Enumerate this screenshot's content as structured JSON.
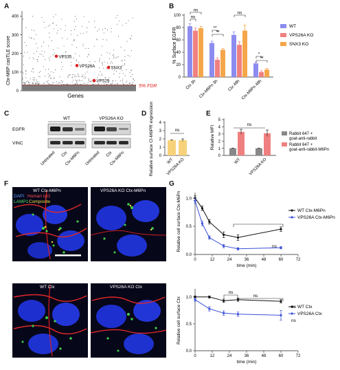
{
  "panels": {
    "A": {
      "letter": "A",
      "ylabel": "Ctx-M6P casTLE score",
      "xlabel": "Genes",
      "fdr_label": "5% FDR",
      "yticks": [
        "0",
        "100",
        "200",
        "300",
        "400"
      ],
      "hits": [
        {
          "label": "VPS35"
        },
        {
          "label": "VPS26A"
        },
        {
          "label": "SNX3"
        },
        {
          "label": "VPS29"
        }
      ]
    },
    "B": {
      "letter": "B",
      "ylabel": "% Surface EGFR",
      "yticks": [
        "0",
        "20",
        "40",
        "60",
        "80",
        "100"
      ],
      "categories": [
        "Ctx 3h",
        "Ctx-M6Pn 3h",
        "Ctx 48h",
        "Ctx-M6Pn 48h"
      ],
      "legend": [
        {
          "name": "WT",
          "color": "#8c8cf0"
        },
        {
          "name": "VPS26A KO",
          "color": "#f08080"
        },
        {
          "name": "SNX3 KO",
          "color": "#f5a64a"
        }
      ],
      "sig": [
        "ns",
        "ns",
        "**",
        "**",
        "ns",
        "*",
        "**"
      ]
    },
    "C": {
      "letter": "C",
      "groups": [
        "WT",
        "VPS26A KO"
      ],
      "rows": [
        "EGFR",
        "VINC"
      ],
      "lanes": [
        "Untreated",
        "Ctx",
        "Ctx-M6Pn",
        "Untreated",
        "Ctx",
        "Ctx-M6Pn"
      ]
    },
    "D": {
      "letter": "D",
      "ylabel": "Relative surface CI-M6PR expression",
      "yticks": [
        "0",
        "1",
        "2",
        "3",
        "4"
      ],
      "categories": [
        "WT",
        "VPS26A KO"
      ],
      "sig": "ns"
    },
    "E": {
      "letter": "E",
      "ylabel": "Relative MFI",
      "yticks": [
        "0",
        "1",
        "2",
        "3",
        "4",
        "5"
      ],
      "categories": [
        "WT",
        "VPS26A KO"
      ],
      "sig": "ns",
      "legend": [
        {
          "name": "Rabbit 647 + goat-anti-rabbit",
          "color": "#888888"
        },
        {
          "name": "Rabbit 647 + goat-anti-rabbit-M6Pn",
          "color": "#f08080"
        }
      ]
    },
    "F": {
      "letter": "F",
      "images": [
        {
          "title": "WT Ctx-M6Pn"
        },
        {
          "title": "VPS26A KO Ctx-M6Pn"
        },
        {
          "title": "WT Ctx"
        },
        {
          "title": "VPS26A KO Ctx"
        }
      ],
      "channels": {
        "dapi": "DAPI",
        "igg": "Human IgG",
        "lamp1": "LAMP1",
        "composite": "Composite"
      }
    },
    "G": {
      "letter": "G",
      "top": {
        "ylabel": "Relative cell surface Ctx-M6Pn",
        "xlabel": "time (min)",
        "xticks": [
          "0",
          "12",
          "24",
          "36",
          "48",
          "60",
          "72"
        ],
        "yticks": [
          "0.0",
          "0.5",
          "1.0"
        ],
        "legend": [
          {
            "name": "WT Ctx-M6Pn",
            "color": "#111111"
          },
          {
            "name": "VPS26A Ctx-M6Pn",
            "color": "#3b4fd6"
          }
        ],
        "sig": "ns"
      },
      "bottom": {
        "ylabel": "Relative cell surface Ctx",
        "xlabel": "time (min)",
        "xticks": [
          "0",
          "12",
          "24",
          "36",
          "48",
          "60",
          "72"
        ],
        "yticks": [
          "0.0",
          "0.5",
          "1.0"
        ],
        "legend": [
          {
            "name": "WT Ctx",
            "color": "#111111"
          },
          {
            "name": "VPS26A Ctx",
            "color": "#3b4fd6"
          }
        ],
        "sig": [
          "ns",
          "ns",
          "ns",
          "ns"
        ]
      }
    }
  },
  "chart_data": [
    {
      "type": "scatter",
      "panel": "A",
      "ylabel": "Ctx-M6P casTLE score",
      "xlabel": "Genes",
      "ylim": [
        0,
        420
      ],
      "fdr_threshold": 30,
      "highlighted": [
        {
          "name": "VPS35",
          "y": 185
        },
        {
          "name": "VPS26A",
          "y": 135
        },
        {
          "name": "SNX3",
          "y": 125
        },
        {
          "name": "VPS29",
          "y": 55
        }
      ]
    },
    {
      "type": "bar",
      "panel": "B",
      "ylabel": "% Surface EGFR",
      "ylim": [
        0,
        100
      ],
      "categories": [
        "Ctx 3h",
        "Ctx-M6Pn 3h",
        "Ctx 48h",
        "Ctx-M6Pn 48h"
      ],
      "series": [
        {
          "name": "WT",
          "values": [
            82,
            55,
            68,
            22
          ],
          "errors": [
            4,
            3,
            5,
            2
          ]
        },
        {
          "name": "VPS26A KO",
          "values": [
            75,
            28,
            52,
            8
          ],
          "errors": [
            4,
            3,
            5,
            2
          ]
        },
        {
          "name": "SNX3 KO",
          "values": [
            79,
            44,
            75,
            12
          ],
          "errors": [
            3,
            2,
            9,
            2
          ]
        }
      ]
    },
    {
      "type": "bar",
      "panel": "D",
      "ylabel": "Relative surface CI-M6PR expression",
      "ylim": [
        0,
        4
      ],
      "categories": [
        "WT",
        "VPS26A KO"
      ],
      "values": [
        1.85,
        1.85
      ],
      "errors": [
        0.05,
        0.15
      ]
    },
    {
      "type": "bar",
      "panel": "E",
      "ylabel": "Relative MFI",
      "ylim": [
        0,
        5
      ],
      "categories": [
        "WT",
        "VPS26A KO"
      ],
      "series": [
        {
          "name": "Rabbit 647 + goat-anti-rabbit",
          "values": [
            1.0,
            1.0
          ],
          "errors": [
            0.03,
            0.03
          ]
        },
        {
          "name": "Rabbit 647 + goat-anti-rabbit-M6Pn",
          "values": [
            3.3,
            3.1
          ],
          "errors": [
            0.35,
            0.45
          ]
        }
      ]
    },
    {
      "type": "line",
      "panel": "G-top",
      "ylabel": "Relative cell surface Ctx-M6Pn",
      "xlabel": "time (min)",
      "xlim": [
        0,
        72
      ],
      "ylim": [
        0,
        1.05
      ],
      "x": [
        0,
        5,
        10,
        20,
        30,
        60
      ],
      "series": [
        {
          "name": "WT Ctx-M6Pn",
          "values": [
            1.0,
            0.82,
            0.58,
            0.35,
            0.3,
            0.45
          ],
          "errors": [
            0.04,
            0.04,
            0.04,
            0.05,
            0.05,
            0.04
          ]
        },
        {
          "name": "VPS26A Ctx-M6Pn",
          "values": [
            0.95,
            0.55,
            0.3,
            0.15,
            0.1,
            0.12
          ],
          "errors": [
            0.04,
            0.04,
            0.03,
            0.03,
            0.02,
            0.02
          ]
        }
      ]
    },
    {
      "type": "line",
      "panel": "G-bottom",
      "ylabel": "Relative cell surface Ctx",
      "xlabel": "time (min)",
      "xlim": [
        0,
        72
      ],
      "ylim": [
        0,
        1.1
      ],
      "x": [
        0,
        10,
        20,
        30,
        60
      ],
      "series": [
        {
          "name": "WT Ctx",
          "values": [
            1.0,
            1.0,
            0.93,
            0.95,
            0.92
          ],
          "errors": [
            0.02,
            0.02,
            0.03,
            0.03,
            0.03
          ]
        },
        {
          "name": "VPS26A Ctx",
          "values": [
            0.95,
            0.78,
            0.7,
            0.68,
            0.66
          ],
          "errors": [
            0.03,
            0.04,
            0.04,
            0.04,
            0.09
          ]
        }
      ]
    }
  ]
}
